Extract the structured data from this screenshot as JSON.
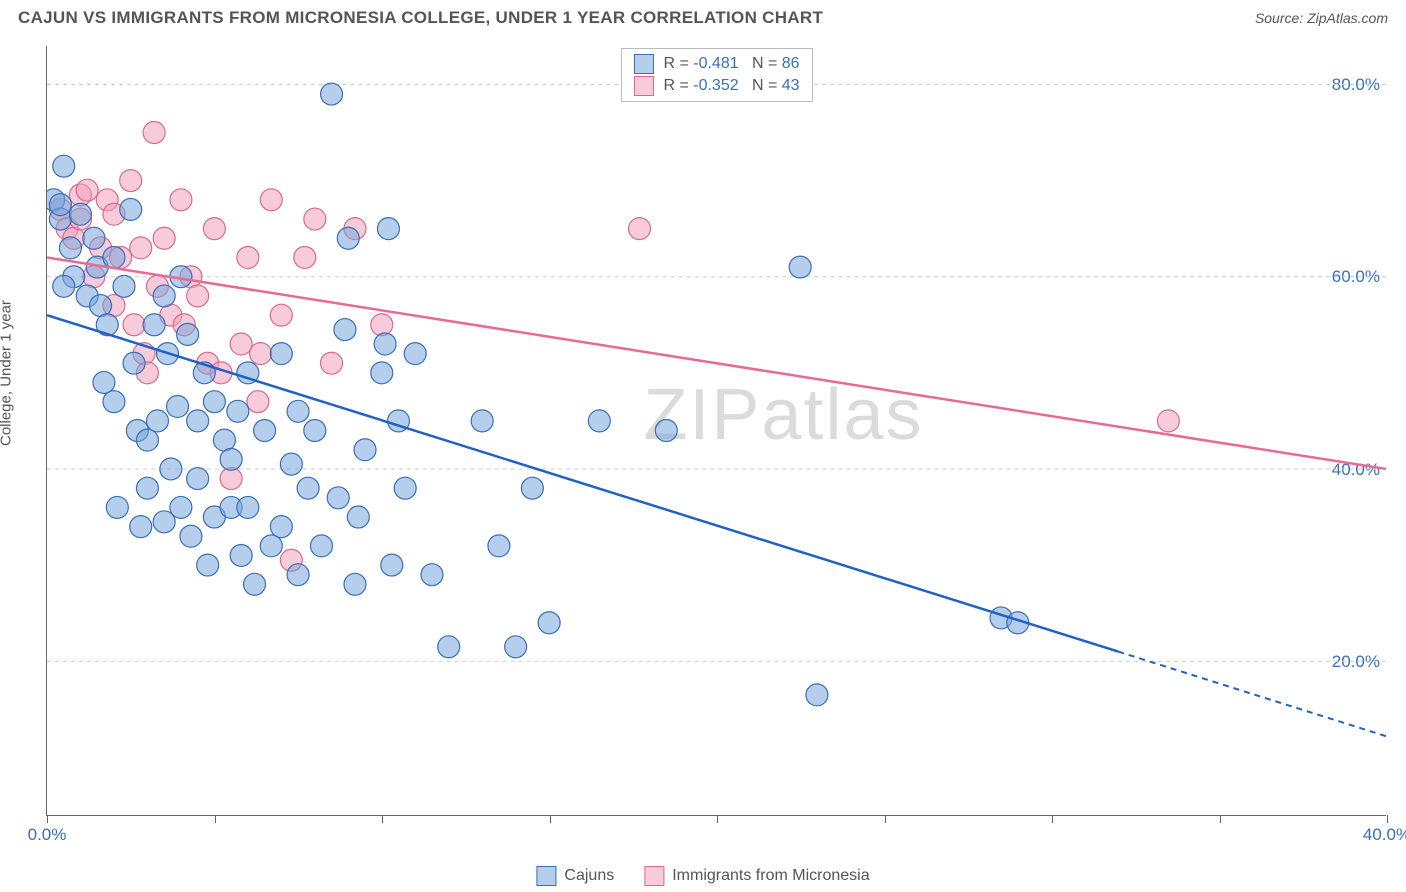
{
  "header": {
    "title": "CAJUN VS IMMIGRANTS FROM MICRONESIA COLLEGE, UNDER 1 YEAR CORRELATION CHART",
    "source": "Source: ZipAtlas.com"
  },
  "axis": {
    "y_title": "College, Under 1 year",
    "x_min": 0,
    "x_max": 40,
    "y_min": 4,
    "y_max": 84,
    "y_ticks": [
      20,
      40,
      60,
      80
    ],
    "y_tick_labels": [
      "20.0%",
      "40.0%",
      "60.0%",
      "80.0%"
    ],
    "x_ticks": [
      0,
      5,
      10,
      15,
      20,
      25,
      30,
      35,
      40
    ],
    "x_tick_labels_shown": {
      "0": "0.0%",
      "40": "40.0%"
    }
  },
  "legend_stats": {
    "series1": {
      "color": "blue",
      "r_label": "R = ",
      "r": "-0.481",
      "n_label": " N = ",
      "n": "86"
    },
    "series2": {
      "color": "pink",
      "r_label": "R = ",
      "r": "-0.352",
      "n_label": " N = ",
      "n": "43"
    }
  },
  "bottom_legend": {
    "series1": "Cajuns",
    "series2": "Immigrants from Micronesia"
  },
  "watermark": {
    "part1": "ZIP",
    "part2": "atlas"
  },
  "styling": {
    "blue_fill": "rgba(120,165,220,0.55)",
    "blue_stroke": "#3a6fb7",
    "pink_fill": "rgba(240,160,185,0.55)",
    "pink_stroke": "#d96a8f",
    "line_blue": "#1e62c4",
    "line_pink": "#e86a93",
    "point_radius": 11
  },
  "trend_lines": {
    "blue": {
      "x1": 0,
      "y1": 56,
      "x2_solid": 32,
      "y2_solid": 21,
      "x2_dash": 40,
      "y2_dash": 12.2
    },
    "pink": {
      "x1": 0,
      "y1": 62,
      "x2": 40,
      "y2": 40
    }
  },
  "points_blue": [
    [
      0.2,
      68
    ],
    [
      0.4,
      66
    ],
    [
      0.5,
      71.5
    ],
    [
      0.7,
      63
    ],
    [
      0.8,
      60
    ],
    [
      0.5,
      59
    ],
    [
      0.4,
      67.5
    ],
    [
      1.0,
      66.5
    ],
    [
      1.2,
      58
    ],
    [
      1.4,
      64
    ],
    [
      1.5,
      61
    ],
    [
      1.6,
      57
    ],
    [
      1.8,
      55
    ],
    [
      1.7,
      49
    ],
    [
      2.0,
      62
    ],
    [
      2.0,
      47
    ],
    [
      2.1,
      36
    ],
    [
      2.3,
      59
    ],
    [
      2.5,
      67
    ],
    [
      2.6,
      51
    ],
    [
      2.7,
      44
    ],
    [
      2.8,
      34
    ],
    [
      3.0,
      43
    ],
    [
      3.0,
      38
    ],
    [
      3.2,
      55
    ],
    [
      3.3,
      45
    ],
    [
      3.5,
      58
    ],
    [
      3.5,
      34.5
    ],
    [
      3.6,
      52
    ],
    [
      3.7,
      40
    ],
    [
      3.9,
      46.5
    ],
    [
      4.0,
      60
    ],
    [
      4.0,
      36
    ],
    [
      4.2,
      54
    ],
    [
      4.3,
      33
    ],
    [
      4.5,
      45
    ],
    [
      4.5,
      39
    ],
    [
      4.7,
      50
    ],
    [
      4.8,
      30
    ],
    [
      5.0,
      47
    ],
    [
      5.0,
      35
    ],
    [
      5.3,
      43
    ],
    [
      5.5,
      41
    ],
    [
      5.5,
      36
    ],
    [
      5.7,
      46
    ],
    [
      5.8,
      31
    ],
    [
      6.0,
      50
    ],
    [
      6.0,
      36
    ],
    [
      6.2,
      28
    ],
    [
      6.5,
      44
    ],
    [
      6.7,
      32
    ],
    [
      7.0,
      52
    ],
    [
      7.0,
      34
    ],
    [
      7.3,
      40.5
    ],
    [
      7.5,
      46
    ],
    [
      7.5,
      29
    ],
    [
      7.8,
      38
    ],
    [
      8.0,
      44
    ],
    [
      8.2,
      32
    ],
    [
      8.5,
      79
    ],
    [
      8.7,
      37
    ],
    [
      8.9,
      54.5
    ],
    [
      9.0,
      64
    ],
    [
      9.2,
      28
    ],
    [
      9.3,
      35
    ],
    [
      9.5,
      42
    ],
    [
      10.0,
      50
    ],
    [
      10.1,
      53
    ],
    [
      10.2,
      65
    ],
    [
      10.3,
      30
    ],
    [
      10.5,
      45
    ],
    [
      10.7,
      38
    ],
    [
      11.0,
      52
    ],
    [
      11.5,
      29
    ],
    [
      12.0,
      21.5
    ],
    [
      13.0,
      45
    ],
    [
      13.5,
      32
    ],
    [
      14.0,
      21.5
    ],
    [
      14.5,
      38
    ],
    [
      15.0,
      24
    ],
    [
      16.5,
      45
    ],
    [
      18.5,
      44
    ],
    [
      22.5,
      61
    ],
    [
      23.0,
      16.5
    ],
    [
      28.5,
      24.5
    ],
    [
      29.0,
      24
    ]
  ],
  "points_pink": [
    [
      0.4,
      67
    ],
    [
      0.6,
      65
    ],
    [
      0.8,
      64
    ],
    [
      1.0,
      68.5
    ],
    [
      1.0,
      66
    ],
    [
      1.2,
      69
    ],
    [
      1.4,
      60
    ],
    [
      1.6,
      63
    ],
    [
      1.8,
      68
    ],
    [
      2.0,
      66.5
    ],
    [
      2.0,
      57
    ],
    [
      2.2,
      62
    ],
    [
      2.5,
      70
    ],
    [
      2.6,
      55
    ],
    [
      2.8,
      63
    ],
    [
      2.9,
      52
    ],
    [
      3,
      50
    ],
    [
      3.2,
      75
    ],
    [
      3.3,
      59
    ],
    [
      3.5,
      64
    ],
    [
      3.7,
      56
    ],
    [
      4.0,
      68
    ],
    [
      4.1,
      55
    ],
    [
      4.3,
      60
    ],
    [
      4.5,
      58
    ],
    [
      4.8,
      51
    ],
    [
      5.0,
      65
    ],
    [
      5.2,
      50
    ],
    [
      5.5,
      39
    ],
    [
      5.8,
      53
    ],
    [
      6.0,
      62
    ],
    [
      6.3,
      47
    ],
    [
      6.38,
      52
    ],
    [
      6.7,
      68
    ],
    [
      7.0,
      56
    ],
    [
      7.3,
      30.5
    ],
    [
      7.7,
      62
    ],
    [
      8.0,
      66
    ],
    [
      8.5,
      51
    ],
    [
      9.2,
      65
    ],
    [
      10.0,
      55
    ],
    [
      17.7,
      65
    ],
    [
      33.5,
      45
    ]
  ]
}
